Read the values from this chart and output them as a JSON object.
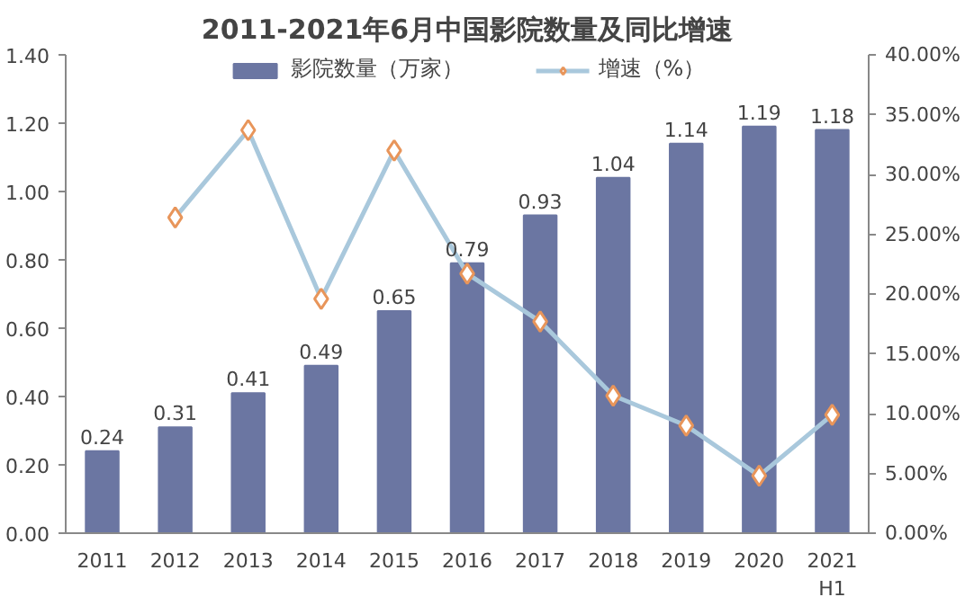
{
  "chart_data": {
    "type": "bar",
    "title": "2011-2021年6月中国影院数量及同比增速",
    "categories": [
      "2011",
      "2012",
      "2013",
      "2014",
      "2015",
      "2016",
      "2017",
      "2018",
      "2019",
      "2020",
      "2021\nH1"
    ],
    "series": [
      {
        "name": "影院数量（万家）",
        "color": "#6b76a2",
        "values": [
          0.24,
          0.31,
          0.41,
          0.49,
          0.65,
          0.79,
          0.93,
          1.04,
          1.14,
          1.19,
          1.18
        ],
        "data_labels": true
      },
      {
        "name": "增速（%）",
        "type": "line",
        "axis": "y2",
        "color": "#a9c8dc",
        "marker": "diamond",
        "values": [
          null,
          26.4,
          33.7,
          19.6,
          32.0,
          21.7,
          17.7,
          11.5,
          9.0,
          4.8,
          9.9
        ]
      }
    ],
    "ylim": [
      0,
      1.4
    ],
    "yticks": [
      {
        "value": 0,
        "label": "0.00"
      },
      {
        "value": 0.2,
        "label": "0.20"
      },
      {
        "value": 0.4,
        "label": "0.40"
      },
      {
        "value": 0.6,
        "label": "0.60"
      },
      {
        "value": 0.8,
        "label": "0.80"
      },
      {
        "value": 1.0,
        "label": "1.00"
      },
      {
        "value": 1.2,
        "label": "1.20"
      },
      {
        "value": 1.4,
        "label": "1.40"
      }
    ],
    "y2lim": [
      0,
      40
    ],
    "y2ticks": [
      {
        "value": 0,
        "label": "0.00%"
      },
      {
        "value": 5,
        "label": "5.00%"
      },
      {
        "value": 10,
        "label": "10.00%"
      },
      {
        "value": 15,
        "label": "15.00%"
      },
      {
        "value": 20,
        "label": "20.00%"
      },
      {
        "value": 25,
        "label": "25.00%"
      },
      {
        "value": 30,
        "label": "30.00%"
      },
      {
        "value": 35,
        "label": "35.00%"
      },
      {
        "value": 40,
        "label": "40.00%"
      }
    ],
    "grid": false,
    "legend": "top"
  }
}
